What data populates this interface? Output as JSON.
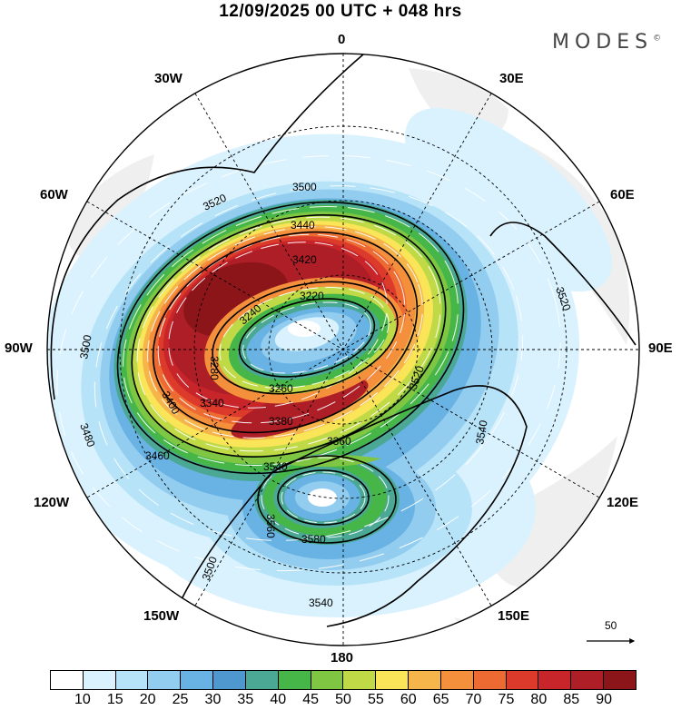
{
  "title": "12/09/2025  00 UTC  + 048 hrs",
  "brand": "MODES",
  "brand_mark": "©",
  "meridian_labels": {
    "deg0": "0",
    "deg30e": "30E",
    "deg60e": "60E",
    "deg90e": "90E",
    "deg120e": "120E",
    "deg150e": "150E",
    "deg180": "180",
    "deg30w": "30W",
    "deg60w": "60W",
    "deg90w": "90W",
    "deg120w": "120W",
    "deg150w": "150W"
  },
  "reference_vector": {
    "value": "50",
    "icon": "arrow-right-icon"
  },
  "colorbar": {
    "colors": [
      "#ffffff",
      "#d9f2fd",
      "#b6e3f8",
      "#92cdf0",
      "#68b3e3",
      "#4e97cf",
      "#4aa894",
      "#46b649",
      "#7fc743",
      "#c0da47",
      "#fae457",
      "#f6b54a",
      "#f48f3c",
      "#ee6a33",
      "#dc3a2b",
      "#c8252b",
      "#ae1e27",
      "#8b1519"
    ],
    "ticks": [
      "10",
      "15",
      "20",
      "25",
      "30",
      "35",
      "40",
      "45",
      "50",
      "55",
      "60",
      "65",
      "70",
      "75",
      "80",
      "85",
      "90"
    ]
  },
  "contour_labels": [
    "3500",
    "3520",
    "3440",
    "3420",
    "3220",
    "3240",
    "3280",
    "3260",
    "3340",
    "3380",
    "3400",
    "3480",
    "3460",
    "3500",
    "3360",
    "3540",
    "3520",
    "3560",
    "3580",
    "3540",
    "3540",
    "3520",
    "3500"
  ]
}
